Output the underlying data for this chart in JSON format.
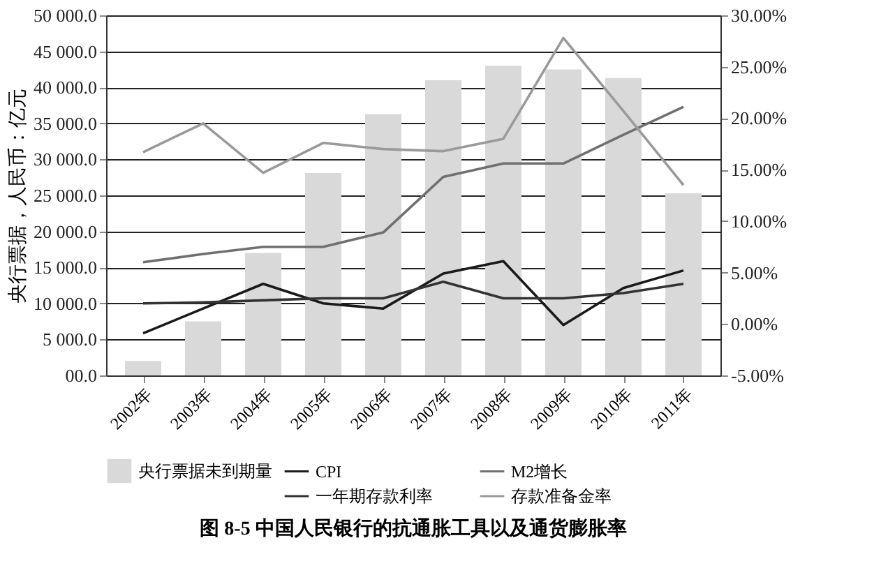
{
  "chart_data": {
    "type": "bar",
    "title": "图 8-5  中国人民银行的抗通胀工具以及通货膨胀率",
    "ylabel": "央行票据，人民币：亿元",
    "categories": [
      "2002年",
      "2003年",
      "2004年",
      "2005年",
      "2006年",
      "2007年",
      "2008年",
      "2009年",
      "2010年",
      "2011年"
    ],
    "series": [
      {
        "name": "央行票据未到期量",
        "color": "#d9d9d9",
        "values": [
          2000,
          7500,
          17000,
          28100,
          36300,
          41000,
          43000,
          42500,
          41300,
          25300
        ]
      },
      {
        "name": "CPI",
        "type": "line",
        "axis": "y2",
        "color": "#1a1a1a",
        "values": [
          -0.9,
          1.5,
          3.9,
          2.0,
          1.5,
          4.9,
          6.1,
          -0.1,
          3.5,
          5.2
        ]
      },
      {
        "name": "M2增长",
        "type": "line",
        "axis": "y2",
        "color": "#707070",
        "values": [
          6.0,
          6.8,
          7.5,
          7.5,
          8.9,
          14.3,
          15.6,
          15.6,
          18.4,
          21.1
        ]
      },
      {
        "name": "一年期存款利率",
        "type": "line",
        "axis": "y2",
        "color": "#333333",
        "values": [
          2.0,
          2.1,
          2.3,
          2.5,
          2.5,
          4.1,
          2.5,
          2.5,
          3.0,
          3.9
        ]
      },
      {
        "name": "存款准备金率",
        "type": "line",
        "axis": "y2",
        "color": "#9a9a9a",
        "values": [
          16.7,
          19.5,
          14.7,
          17.6,
          17.0,
          16.8,
          18.0,
          27.8,
          20.7,
          13.5
        ]
      }
    ],
    "ylim": [
      0,
      50000
    ],
    "yticks": [
      {
        "value": 0,
        "label": "00.0"
      },
      {
        "value": 5000,
        "label": "5 000.0"
      },
      {
        "value": 10000,
        "label": "10 000.0"
      },
      {
        "value": 15000,
        "label": "15 000.0"
      },
      {
        "value": 20000,
        "label": "20 000.0"
      },
      {
        "value": 25000,
        "label": "25 000.0"
      },
      {
        "value": 30000,
        "label": "30 000.0"
      },
      {
        "value": 35000,
        "label": "35 000.0"
      },
      {
        "value": 40000,
        "label": "40 000.0"
      },
      {
        "value": 45000,
        "label": "45 000.0"
      },
      {
        "value": 50000,
        "label": "50 000.0"
      }
    ],
    "y2lim": [
      -5,
      30
    ],
    "y2ticks": [
      {
        "value": -5,
        "label": "-5.00%"
      },
      {
        "value": 0,
        "label": "0.00%"
      },
      {
        "value": 5,
        "label": "5.00%"
      },
      {
        "value": 10,
        "label": "10.00%"
      },
      {
        "value": 15,
        "label": "15.00%"
      },
      {
        "value": 20,
        "label": "20.00%"
      },
      {
        "value": 25,
        "label": "25.00%"
      },
      {
        "value": 30,
        "label": "30.00%"
      }
    ],
    "grid": "y",
    "legend": "bottom",
    "line_style": "solid",
    "marker": "none"
  }
}
